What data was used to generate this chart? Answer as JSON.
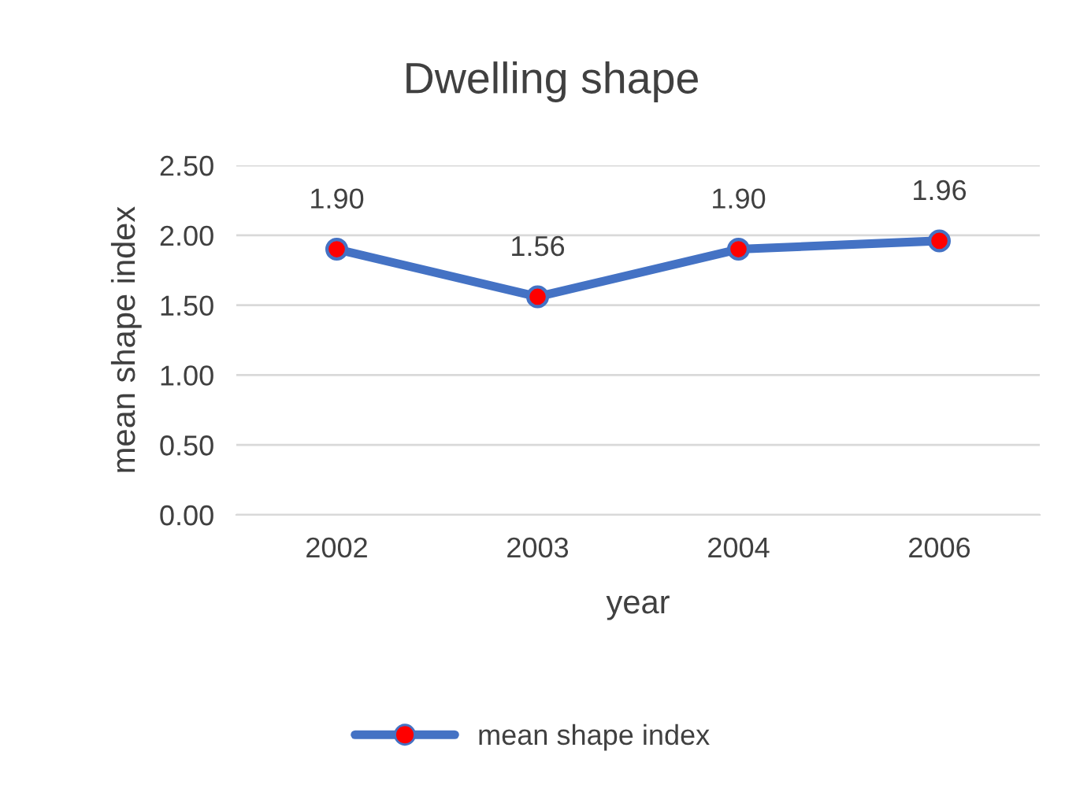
{
  "chart_data": {
    "type": "line",
    "title": "Dwelling shape",
    "xlabel": "year",
    "ylabel": "mean shape index",
    "categories": [
      "2002",
      "2003",
      "2004",
      "2006"
    ],
    "series": [
      {
        "name": "mean shape index",
        "color": "#4472c4",
        "colors": [
          "#ff0000",
          "#ff0000",
          "#ff0000",
          "#ff0000"
        ],
        "values": [
          1.9,
          1.56,
          1.9,
          1.96
        ],
        "value_labels": [
          "1.90",
          "1.56",
          "1.90",
          "1.96"
        ]
      }
    ],
    "ylim": [
      0,
      2.5
    ],
    "yticks": [
      {
        "value": 0,
        "label": "0.00"
      },
      {
        "value": 0.5,
        "label": "0.50"
      },
      {
        "value": 1.0,
        "label": "1.00"
      },
      {
        "value": 1.5,
        "label": "1.50"
      },
      {
        "value": 2.0,
        "label": "2.00"
      },
      {
        "value": 2.5,
        "label": "2.50"
      }
    ],
    "grid": "y",
    "legend": "bottom",
    "marker": "circle",
    "line_style": "solid"
  }
}
